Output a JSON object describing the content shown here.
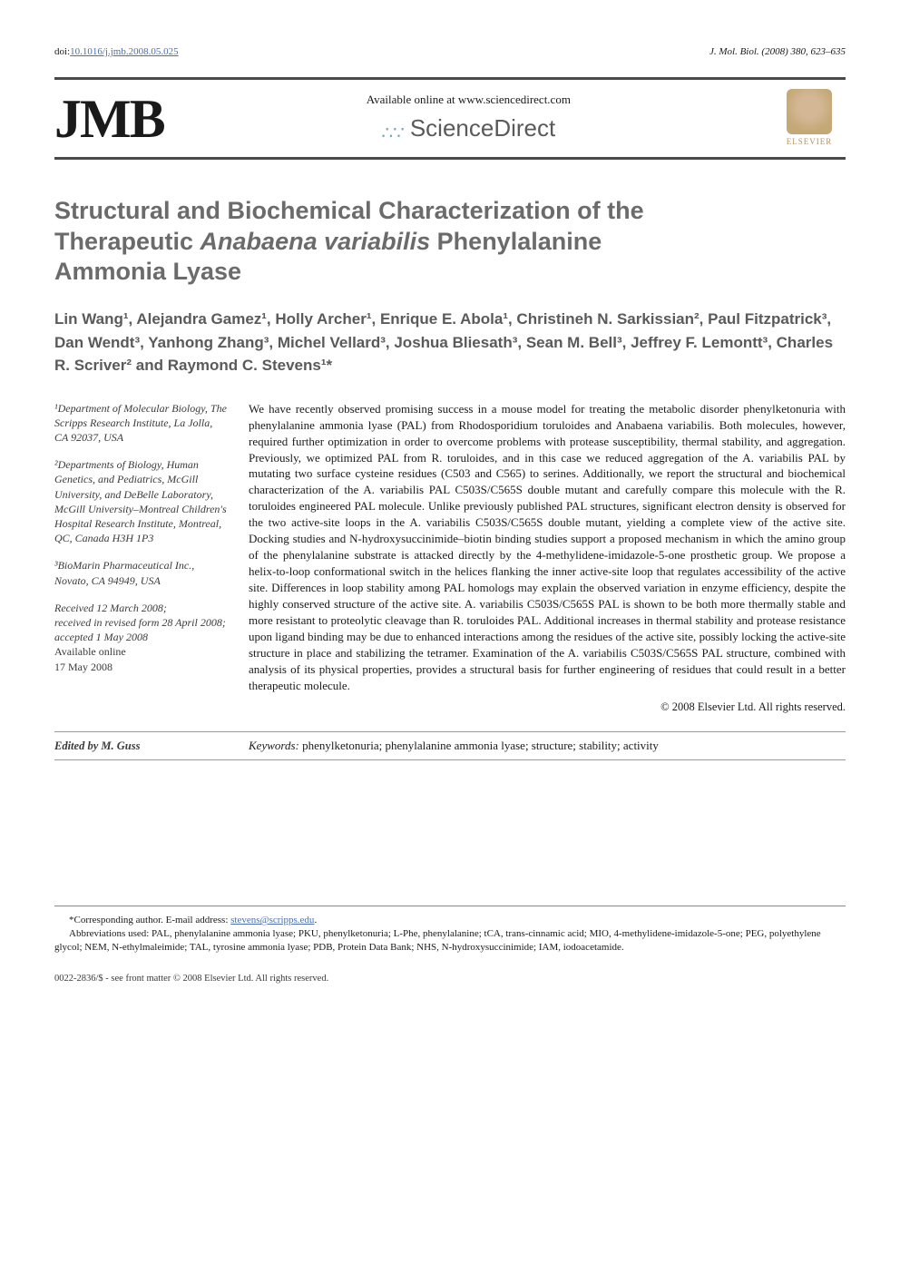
{
  "doi_prefix": "doi:",
  "doi_link": "10.1016/j.jmb.2008.05.025",
  "journal_ref": "J. Mol. Biol. (2008) 380, 623–635",
  "banner": {
    "jmb": "JMB",
    "available_line": "Available online at www.sciencedirect.com",
    "sciencedirect": "ScienceDirect",
    "elsevier": "ELSEVIER"
  },
  "title_line1": "Structural and Biochemical Characterization of the",
  "title_line2_pre": "Therapeutic ",
  "title_line2_italic": "Anabaena variabilis",
  "title_line2_post": " Phenylalanine",
  "title_line3": "Ammonia Lyase",
  "authors_html": "Lin Wang¹, Alejandra Gamez¹, Holly Archer¹, Enrique E. Abola¹, Christineh N. Sarkissian², Paul Fitzpatrick³, Dan Wendt³, Yanhong Zhang³, Michel Vellard³, Joshua Bliesath³, Sean M. Bell³, Jeffrey F. Lemontt³, Charles R. Scriver² and Raymond C. Stevens¹*",
  "affiliations": {
    "a1": "¹Department of Molecular Biology, The Scripps Research Institute, La Jolla, CA 92037, USA",
    "a2": "²Departments of Biology, Human Genetics, and Pediatrics, McGill University, and DeBelle Laboratory, McGill University–Montreal Children's Hospital Research Institute, Montreal, QC, Canada H3H 1P3",
    "a3": "³BioMarin Pharmaceutical Inc., Novato, CA 94949, USA"
  },
  "dates": {
    "received": "Received 12 March 2008;",
    "revised": "received in revised form 28 April 2008;",
    "accepted": "accepted 1 May 2008",
    "online_label": "Available online",
    "online_date": "17 May 2008"
  },
  "abstract": "We have recently observed promising success in a mouse model for treating the metabolic disorder phenylketonuria with phenylalanine ammonia lyase (PAL) from Rhodosporidium toruloides and Anabaena variabilis. Both molecules, however, required further optimization in order to overcome problems with protease susceptibility, thermal stability, and aggregation. Previously, we optimized PAL from R. toruloides, and in this case we reduced aggregation of the A. variabilis PAL by mutating two surface cysteine residues (C503 and C565) to serines. Additionally, we report the structural and biochemical characterization of the A. variabilis PAL C503S/C565S double mutant and carefully compare this molecule with the R. toruloides engineered PAL molecule. Unlike previously published PAL structures, significant electron density is observed for the two active-site loops in the A. variabilis C503S/C565S double mutant, yielding a complete view of the active site. Docking studies and N-hydroxysuccinimide–biotin binding studies support a proposed mechanism in which the amino group of the phenylalanine substrate is attacked directly by the 4-methylidene-imidazole-5-one prosthetic group. We propose a helix-to-loop conformational switch in the helices flanking the inner active-site loop that regulates accessibility of the active site. Differences in loop stability among PAL homologs may explain the observed variation in enzyme efficiency, despite the highly conserved structure of the active site. A. variabilis C503S/C565S PAL is shown to be both more thermally stable and more resistant to proteolytic cleavage than R. toruloides PAL. Additional increases in thermal stability and protease resistance upon ligand binding may be due to enhanced interactions among the residues of the active site, possibly locking the active-site structure in place and stabilizing the tetramer. Examination of the A. variabilis C503S/C565S PAL structure, combined with analysis of its physical properties, provides a structural basis for further engineering of residues that could result in a better therapeutic molecule.",
  "copyright": "© 2008 Elsevier Ltd. All rights reserved.",
  "keywords_label": "Keywords:",
  "keywords": " phenylketonuria; phenylalanine ammonia lyase; structure; stability; activity",
  "editor": "Edited by M. Guss",
  "footnotes": {
    "corr_label": "*Corresponding author.",
    "corr_email_label": " E-mail address: ",
    "corr_email": "stevens@scripps.edu",
    "abbrev": "Abbreviations used: PAL, phenylalanine ammonia lyase; PKU, phenylketonuria; L-Phe, phenylalanine; tCA, trans-cinnamic acid; MIO, 4-methylidene-imidazole-5-one; PEG, polyethylene glycol; NEM, N-ethylmaleimide; TAL, tyrosine ammonia lyase; PDB, Protein Data Bank; NHS, N-hydroxysuccinimide; IAM, iodoacetamide."
  },
  "bottom": "0022-2836/$ - see front matter © 2008 Elsevier Ltd. All rights reserved.",
  "colors": {
    "link": "#4a6fb0",
    "title_gray": "#6b6b6b",
    "author_gray": "#5a5a5a",
    "rule": "#4a4a4a",
    "elsevier": "#b89060"
  },
  "fonts": {
    "title_size": 27,
    "author_size": 17,
    "body_size": 13,
    "meta_size": 12,
    "footnote_size": 11
  }
}
